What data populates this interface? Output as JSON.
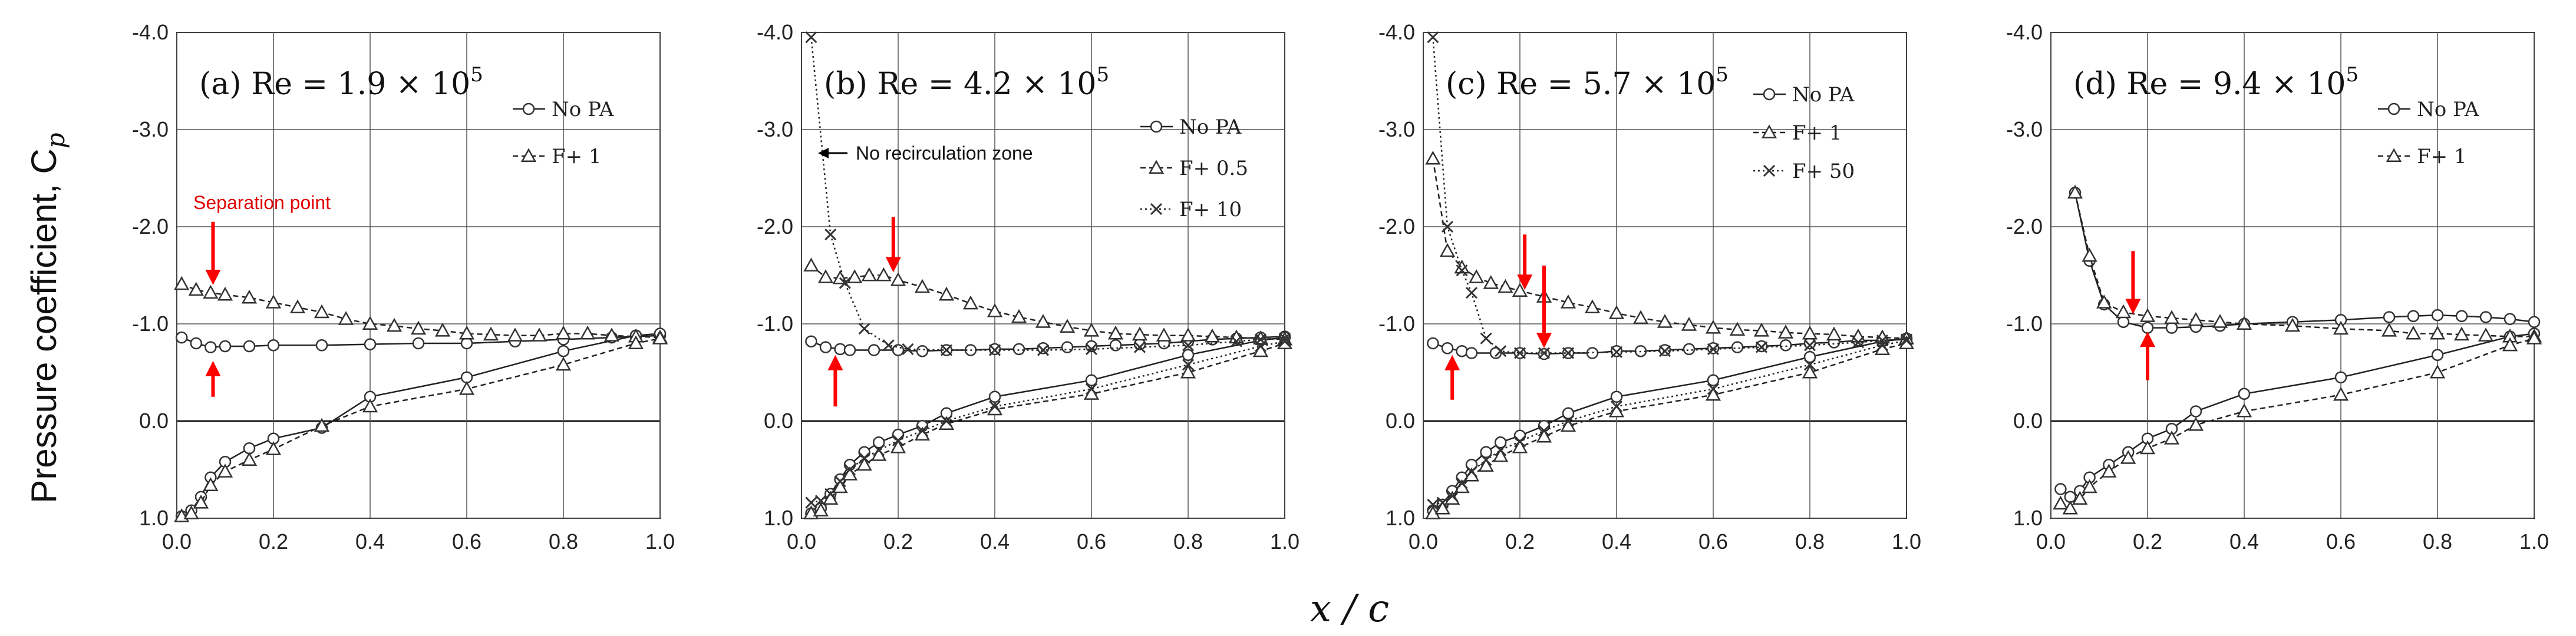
{
  "figure": {
    "ylabel": "Pressure coefficient, C",
    "ylabel_sub": "p",
    "xlabel": "x / c"
  },
  "chart_data": [
    {
      "type": "line",
      "title": "(a) Re = 1.9 × 10",
      "title_sup": "5",
      "xlabel": "x/c",
      "ylabel": "Pressure coefficient, Cp",
      "xlim": [
        0.0,
        1.0
      ],
      "ylim": [
        1.0,
        -4.0
      ],
      "xticks": [
        "0.0",
        "0.2",
        "0.4",
        "0.6",
        "0.8",
        "1.0"
      ],
      "yticks": [
        "-4.0",
        "-3.0",
        "-2.0",
        "-1.0",
        "0.0",
        "1.0"
      ],
      "legend": "top-right",
      "series": [
        {
          "name": "No PA",
          "marker": "circle",
          "dash": "solid",
          "upper": {
            "x": [
              0.01,
              0.04,
              0.07,
              0.1,
              0.15,
              0.2,
              0.3,
              0.4,
              0.5,
              0.6,
              0.7,
              0.8,
              0.9,
              0.95,
              1.0
            ],
            "y": [
              -0.86,
              -0.8,
              -0.76,
              -0.77,
              -0.77,
              -0.78,
              -0.78,
              -0.79,
              -0.8,
              -0.8,
              -0.82,
              -0.84,
              -0.86,
              -0.87,
              -0.88
            ]
          },
          "lower": {
            "x": [
              0.01,
              0.03,
              0.05,
              0.07,
              0.1,
              0.15,
              0.2,
              0.3,
              0.4,
              0.6,
              0.8,
              0.95,
              1.0
            ],
            "y": [
              0.98,
              0.92,
              0.78,
              0.58,
              0.42,
              0.28,
              0.18,
              0.07,
              -0.25,
              -0.45,
              -0.72,
              -0.88,
              -0.9
            ]
          }
        },
        {
          "name": "F+ 1",
          "marker": "triangle",
          "dash": "dashed",
          "upper": {
            "x": [
              0.01,
              0.04,
              0.07,
              0.1,
              0.15,
              0.2,
              0.25,
              0.3,
              0.35,
              0.4,
              0.45,
              0.5,
              0.55,
              0.6,
              0.65,
              0.7,
              0.75,
              0.8,
              0.85,
              0.9,
              0.95,
              1.0
            ],
            "y": [
              -1.41,
              -1.35,
              -1.32,
              -1.3,
              -1.27,
              -1.22,
              -1.17,
              -1.12,
              -1.05,
              -1.0,
              -0.98,
              -0.95,
              -0.93,
              -0.9,
              -0.89,
              -0.88,
              -0.88,
              -0.9,
              -0.9,
              -0.88,
              -0.87,
              -0.86
            ]
          },
          "lower": {
            "x": [
              0.01,
              0.03,
              0.05,
              0.07,
              0.1,
              0.15,
              0.2,
              0.3,
              0.4,
              0.6,
              0.8,
              0.95,
              1.0
            ],
            "y": [
              0.98,
              0.95,
              0.84,
              0.66,
              0.52,
              0.4,
              0.29,
              0.05,
              -0.15,
              -0.33,
              -0.58,
              -0.8,
              -0.85
            ]
          }
        }
      ],
      "annotations": [
        {
          "text": "Separation point",
          "color": "red"
        }
      ],
      "arrows": [
        {
          "x": 0.075,
          "from": -2.05,
          "to": -1.4
        },
        {
          "x": 0.075,
          "from": -0.25,
          "to": -0.62
        }
      ]
    },
    {
      "type": "line",
      "title": "(b) Re = 4.2 × 10",
      "title_sup": "5",
      "xlim": [
        0.0,
        1.0
      ],
      "ylim": [
        1.0,
        -4.0
      ],
      "xticks": [
        "0.0",
        "0.2",
        "0.4",
        "0.6",
        "0.8",
        "1.0"
      ],
      "yticks": [
        "-4.0",
        "-3.0",
        "-2.0",
        "-1.0",
        "0.0",
        "1.0"
      ],
      "legend": "top-right",
      "series": [
        {
          "name": "No PA",
          "marker": "circle",
          "dash": "solid",
          "upper": {
            "x": [
              0.02,
              0.05,
              0.08,
              0.1,
              0.15,
              0.2,
              0.25,
              0.3,
              0.35,
              0.4,
              0.45,
              0.5,
              0.55,
              0.6,
              0.65,
              0.7,
              0.75,
              0.8,
              0.85,
              0.9,
              0.95,
              1.0
            ],
            "y": [
              -0.82,
              -0.76,
              -0.74,
              -0.73,
              -0.73,
              -0.73,
              -0.72,
              -0.73,
              -0.73,
              -0.74,
              -0.74,
              -0.75,
              -0.76,
              -0.77,
              -0.78,
              -0.79,
              -0.8,
              -0.82,
              -0.84,
              -0.85,
              -0.86,
              -0.87
            ]
          },
          "lower": {
            "x": [
              0.02,
              0.04,
              0.06,
              0.08,
              0.1,
              0.13,
              0.16,
              0.2,
              0.25,
              0.3,
              0.4,
              0.6,
              0.8,
              0.95,
              1.0
            ],
            "y": [
              0.95,
              0.9,
              0.75,
              0.6,
              0.45,
              0.32,
              0.22,
              0.14,
              0.05,
              -0.08,
              -0.25,
              -0.42,
              -0.68,
              -0.83,
              -0.86
            ]
          }
        },
        {
          "name": "F+ 0.5",
          "marker": "triangle",
          "dash": "dashed",
          "upper": {
            "x": [
              0.02,
              0.05,
              0.08,
              0.11,
              0.14,
              0.17,
              0.2,
              0.25,
              0.3,
              0.35,
              0.4,
              0.45,
              0.5,
              0.55,
              0.6,
              0.65,
              0.7,
              0.75,
              0.8,
              0.85,
              0.9,
              0.95,
              1.0
            ],
            "y": [
              -1.6,
              -1.48,
              -1.47,
              -1.48,
              -1.5,
              -1.5,
              -1.45,
              -1.38,
              -1.3,
              -1.21,
              -1.13,
              -1.07,
              -1.02,
              -0.97,
              -0.93,
              -0.9,
              -0.89,
              -0.88,
              -0.88,
              -0.87,
              -0.86,
              -0.85,
              -0.84
            ]
          },
          "lower": {
            "x": [
              0.02,
              0.04,
              0.06,
              0.08,
              0.1,
              0.13,
              0.16,
              0.2,
              0.25,
              0.3,
              0.4,
              0.6,
              0.8,
              0.95,
              1.0
            ],
            "y": [
              0.95,
              0.92,
              0.8,
              0.68,
              0.55,
              0.45,
              0.35,
              0.27,
              0.14,
              0.03,
              -0.12,
              -0.28,
              -0.5,
              -0.72,
              -0.8
            ]
          }
        },
        {
          "name": "F+ 10",
          "marker": "cross",
          "dash": "dotted",
          "upper": {
            "x": [
              0.02,
              0.06,
              0.09,
              0.13,
              0.18,
              0.22,
              0.3,
              0.4,
              0.5,
              0.6,
              0.7,
              0.8,
              0.9,
              0.95,
              1.0
            ],
            "y": [
              -3.95,
              -1.92,
              -1.42,
              -0.95,
              -0.78,
              -0.74,
              -0.73,
              -0.73,
              -0.73,
              -0.74,
              -0.76,
              -0.78,
              -0.82,
              -0.84,
              -0.85
            ]
          },
          "lower": {
            "x": [
              0.02,
              0.04,
              0.06,
              0.08,
              0.1,
              0.13,
              0.16,
              0.2,
              0.25,
              0.3,
              0.4,
              0.6,
              0.8,
              0.95,
              1.0
            ],
            "y": [
              0.84,
              0.82,
              0.75,
              0.62,
              0.5,
              0.38,
              0.3,
              0.2,
              0.1,
              0.0,
              -0.15,
              -0.33,
              -0.58,
              -0.77,
              -0.82
            ]
          }
        }
      ],
      "annotations": [
        {
          "text": "No recirculation zone",
          "color": "black"
        }
      ],
      "arrows": [
        {
          "x": 0.19,
          "from": -2.1,
          "to": -1.53
        },
        {
          "x": 0.07,
          "from": -0.15,
          "to": -0.68
        }
      ]
    },
    {
      "type": "line",
      "title": "(c) Re = 5.7 × 10",
      "title_sup": "5",
      "xlim": [
        0.0,
        1.0
      ],
      "ylim": [
        1.0,
        -4.0
      ],
      "xticks": [
        "0.0",
        "0.2",
        "0.4",
        "0.6",
        "0.8",
        "1.0"
      ],
      "yticks": [
        "-4.0",
        "-3.0",
        "-2.0",
        "-1.0",
        "0.0",
        "1.0"
      ],
      "legend": "top-right",
      "series": [
        {
          "name": "No PA",
          "marker": "circle",
          "dash": "solid",
          "upper": {
            "x": [
              0.02,
              0.05,
              0.08,
              0.1,
              0.15,
              0.2,
              0.25,
              0.3,
              0.35,
              0.4,
              0.45,
              0.5,
              0.55,
              0.6,
              0.65,
              0.7,
              0.75,
              0.8,
              0.85,
              0.9,
              0.95,
              1.0
            ],
            "y": [
              -0.8,
              -0.75,
              -0.72,
              -0.7,
              -0.7,
              -0.7,
              -0.69,
              -0.7,
              -0.7,
              -0.72,
              -0.72,
              -0.73,
              -0.74,
              -0.75,
              -0.76,
              -0.77,
              -0.78,
              -0.8,
              -0.81,
              -0.83,
              -0.83,
              -0.84
            ]
          },
          "lower": {
            "x": [
              0.02,
              0.04,
              0.06,
              0.08,
              0.1,
              0.13,
              0.16,
              0.2,
              0.25,
              0.3,
              0.4,
              0.6,
              0.8,
              0.95,
              1.0
            ],
            "y": [
              0.92,
              0.86,
              0.72,
              0.58,
              0.45,
              0.32,
              0.22,
              0.15,
              0.05,
              -0.08,
              -0.25,
              -0.42,
              -0.66,
              -0.82,
              -0.85
            ]
          }
        },
        {
          "name": "F+ 1",
          "marker": "triangle",
          "dash": "dashed",
          "upper": {
            "x": [
              0.02,
              0.05,
              0.08,
              0.11,
              0.14,
              0.17,
              0.2,
              0.25,
              0.3,
              0.35,
              0.4,
              0.45,
              0.5,
              0.55,
              0.6,
              0.65,
              0.7,
              0.75,
              0.8,
              0.85,
              0.9,
              0.95,
              1.0
            ],
            "y": [
              -2.7,
              -1.75,
              -1.58,
              -1.48,
              -1.42,
              -1.38,
              -1.34,
              -1.28,
              -1.22,
              -1.17,
              -1.11,
              -1.06,
              -1.02,
              -0.99,
              -0.96,
              -0.94,
              -0.93,
              -0.91,
              -0.9,
              -0.89,
              -0.87,
              -0.86,
              -0.85
            ]
          },
          "lower": {
            "x": [
              0.02,
              0.04,
              0.06,
              0.08,
              0.1,
              0.13,
              0.16,
              0.2,
              0.25,
              0.3,
              0.4,
              0.6,
              0.8,
              0.95,
              1.0
            ],
            "y": [
              0.95,
              0.9,
              0.8,
              0.68,
              0.56,
              0.46,
              0.36,
              0.27,
              0.16,
              0.05,
              -0.1,
              -0.27,
              -0.5,
              -0.74,
              -0.8
            ]
          }
        },
        {
          "name": "F+ 50",
          "marker": "cross",
          "dash": "dotted",
          "upper": {
            "x": [
              0.02,
              0.05,
              0.08,
              0.1,
              0.13,
              0.16,
              0.2,
              0.25,
              0.3,
              0.4,
              0.5,
              0.6,
              0.7,
              0.8,
              0.9,
              0.95,
              1.0
            ],
            "y": [
              -3.95,
              -2.0,
              -1.55,
              -1.32,
              -0.85,
              -0.72,
              -0.7,
              -0.7,
              -0.7,
              -0.71,
              -0.72,
              -0.74,
              -0.76,
              -0.78,
              -0.81,
              -0.83,
              -0.84
            ]
          },
          "lower": {
            "x": [
              0.02,
              0.04,
              0.06,
              0.08,
              0.1,
              0.13,
              0.16,
              0.2,
              0.25,
              0.3,
              0.4,
              0.6,
              0.8,
              0.95,
              1.0
            ],
            "y": [
              0.86,
              0.84,
              0.77,
              0.64,
              0.52,
              0.4,
              0.3,
              0.21,
              0.1,
              0.0,
              -0.15,
              -0.33,
              -0.58,
              -0.78,
              -0.83
            ]
          }
        }
      ],
      "arrows": [
        {
          "x": 0.21,
          "from": -1.92,
          "to": -1.35
        },
        {
          "x": 0.06,
          "from": -0.22,
          "to": -0.68
        },
        {
          "x": 0.25,
          "from": -1.6,
          "to": -0.75
        }
      ]
    },
    {
      "type": "line",
      "title": "(d) Re = 9.4 × 10",
      "title_sup": "5",
      "xlim": [
        0.0,
        1.0
      ],
      "ylim": [
        1.0,
        -4.0
      ],
      "xticks": [
        "0.0",
        "0.2",
        "0.4",
        "0.6",
        "0.8",
        "1.0"
      ],
      "yticks": [
        "-4.0",
        "-3.0",
        "-2.0",
        "-1.0",
        "0.0",
        "1.0"
      ],
      "legend": "top-right",
      "series": [
        {
          "name": "No PA",
          "marker": "circle",
          "dash": "solid",
          "upper": {
            "x": [
              0.05,
              0.08,
              0.11,
              0.15,
              0.2,
              0.25,
              0.3,
              0.35,
              0.4,
              0.5,
              0.6,
              0.7,
              0.75,
              0.8,
              0.85,
              0.9,
              0.95,
              1.0
            ],
            "y": [
              -2.35,
              -1.65,
              -1.2,
              -1.02,
              -0.96,
              -0.96,
              -0.97,
              -0.98,
              -1.0,
              -1.02,
              -1.04,
              -1.07,
              -1.08,
              -1.09,
              -1.08,
              -1.07,
              -1.05,
              -1.02
            ]
          },
          "lower": {
            "x": [
              0.02,
              0.04,
              0.06,
              0.08,
              0.12,
              0.16,
              0.2,
              0.25,
              0.3,
              0.4,
              0.6,
              0.8,
              0.95,
              1.0
            ],
            "y": [
              0.7,
              0.78,
              0.72,
              0.58,
              0.45,
              0.32,
              0.18,
              0.08,
              -0.1,
              -0.28,
              -0.45,
              -0.68,
              -0.87,
              -0.9
            ]
          }
        },
        {
          "name": "F+ 1",
          "marker": "triangle",
          "dash": "dashed",
          "upper": {
            "x": [
              0.05,
              0.08,
              0.11,
              0.15,
              0.2,
              0.25,
              0.3,
              0.35,
              0.4,
              0.5,
              0.6,
              0.7,
              0.75,
              0.8,
              0.85,
              0.9,
              0.95,
              1.0
            ],
            "y": [
              -2.35,
              -1.7,
              -1.22,
              -1.12,
              -1.08,
              -1.06,
              -1.04,
              -1.02,
              -1.0,
              -0.98,
              -0.95,
              -0.93,
              -0.9,
              -0.9,
              -0.89,
              -0.88,
              -0.87,
              -0.87
            ]
          },
          "lower": {
            "x": [
              0.02,
              0.04,
              0.06,
              0.08,
              0.12,
              0.16,
              0.2,
              0.25,
              0.3,
              0.4,
              0.6,
              0.8,
              0.95,
              1.0
            ],
            "y": [
              0.85,
              0.9,
              0.8,
              0.68,
              0.52,
              0.38,
              0.28,
              0.18,
              0.04,
              -0.1,
              -0.27,
              -0.5,
              -0.78,
              -0.85
            ]
          }
        }
      ],
      "arrows": [
        {
          "x": 0.17,
          "from": -1.75,
          "to": -1.1
        },
        {
          "x": 0.2,
          "from": -0.42,
          "to": -0.92
        }
      ]
    }
  ]
}
